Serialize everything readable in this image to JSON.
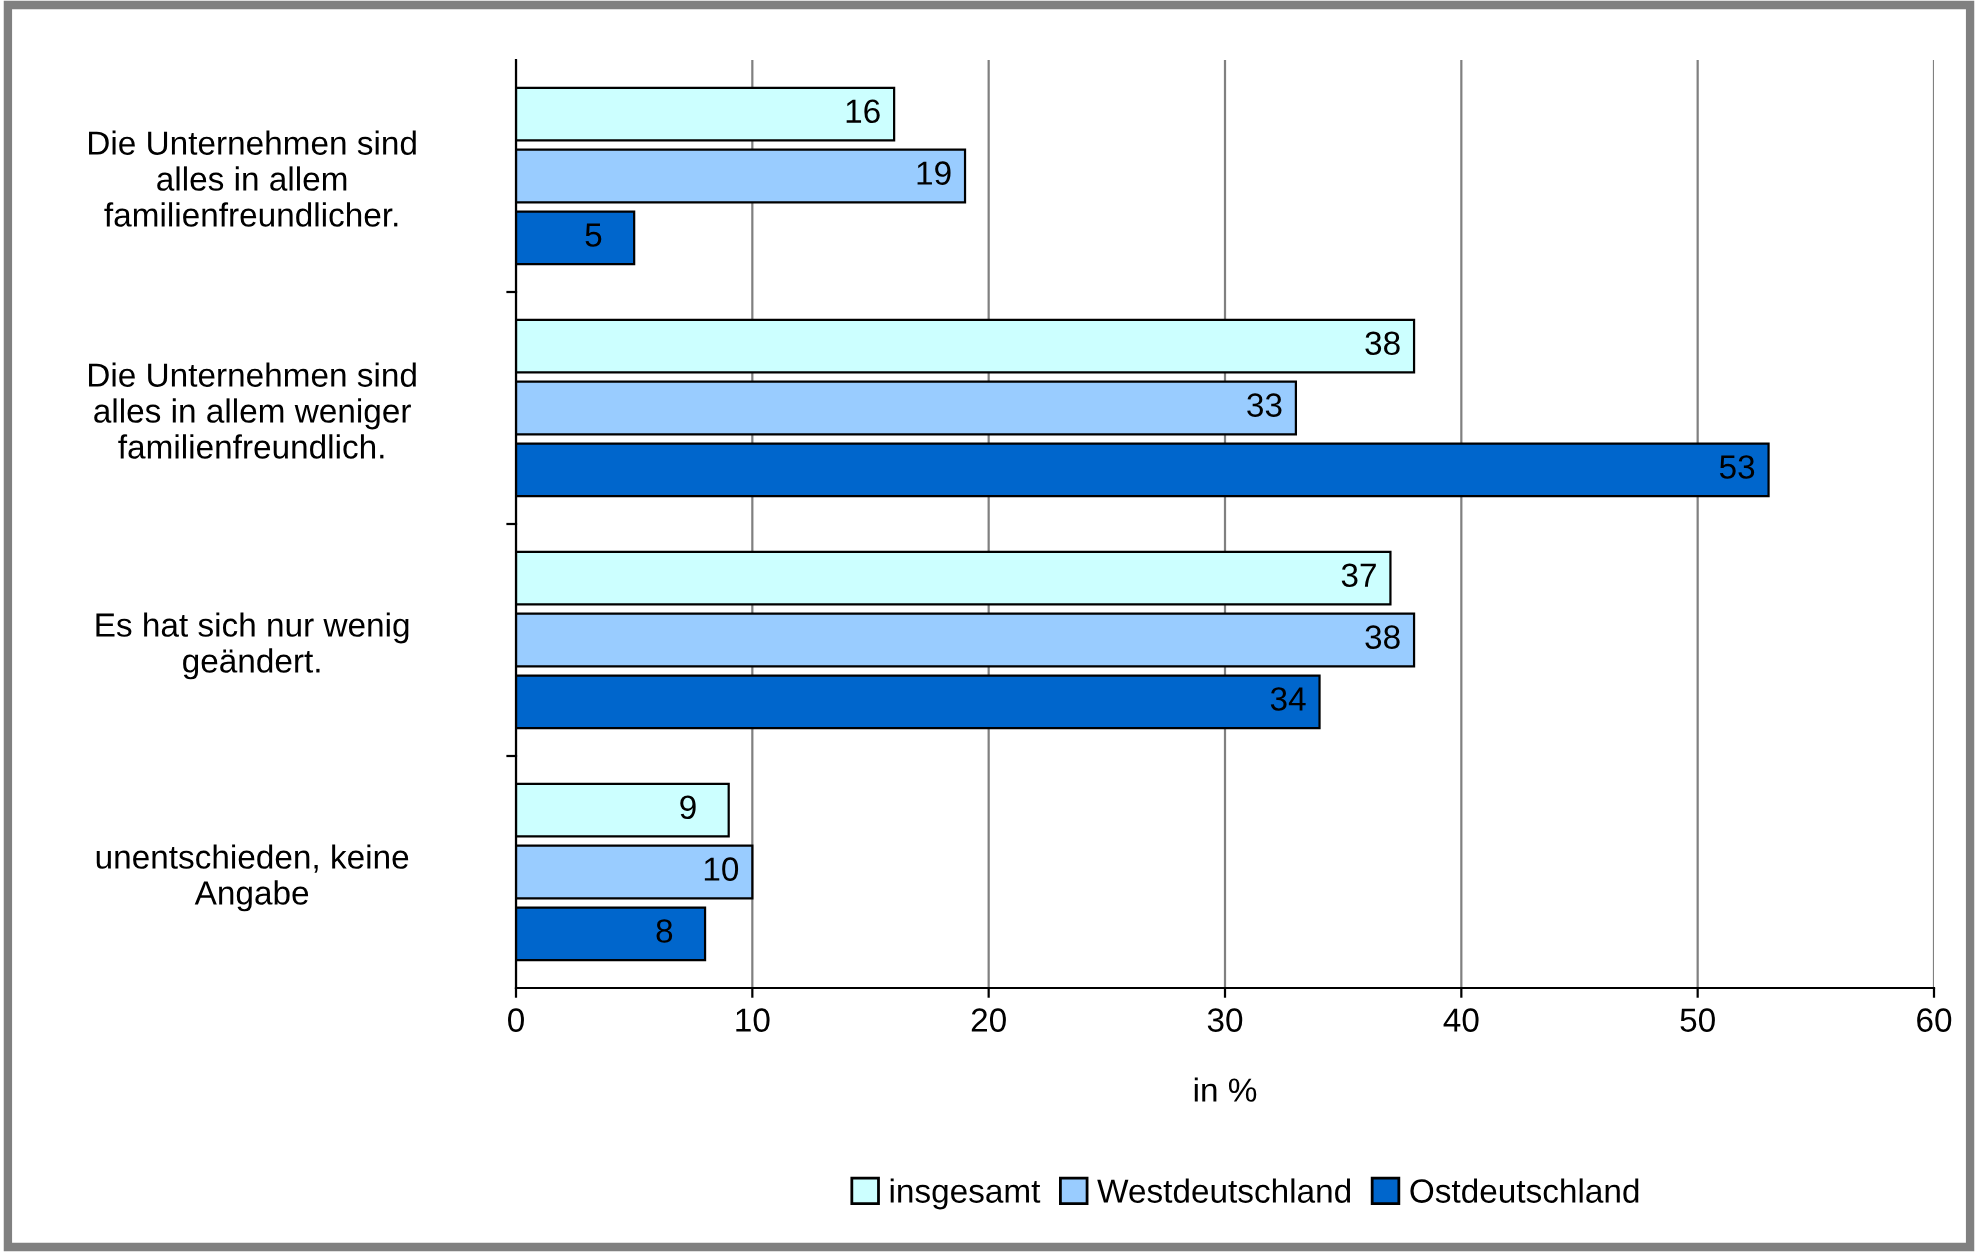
{
  "chart_data": {
    "type": "bar",
    "orientation": "horizontal",
    "xlabel": "in %",
    "categories": [
      "Die Unternehmen sind\nalles in allem\nfamilienfreundlicher.",
      "Die Unternehmen sind\nalles in allem weniger\nfamilienfreundlich.",
      "Es hat sich nur wenig\ngeändert.",
      "unentschieden, keine\nAngabe"
    ],
    "series": [
      {
        "name": "insgesamt",
        "color": "#ccffff",
        "values": [
          16,
          38,
          37,
          9
        ]
      },
      {
        "name": "Westdeutschland",
        "color": "#99ccff",
        "values": [
          19,
          33,
          38,
          10
        ]
      },
      {
        "name": "Ostdeutschland",
        "color": "#0066cc",
        "values": [
          5,
          53,
          34,
          8
        ]
      }
    ],
    "xlim": [
      0,
      60
    ],
    "xticks": [
      0,
      10,
      20,
      30,
      40,
      50,
      60
    ],
    "grid": "x",
    "legend": "bottom",
    "data_labels": true
  }
}
